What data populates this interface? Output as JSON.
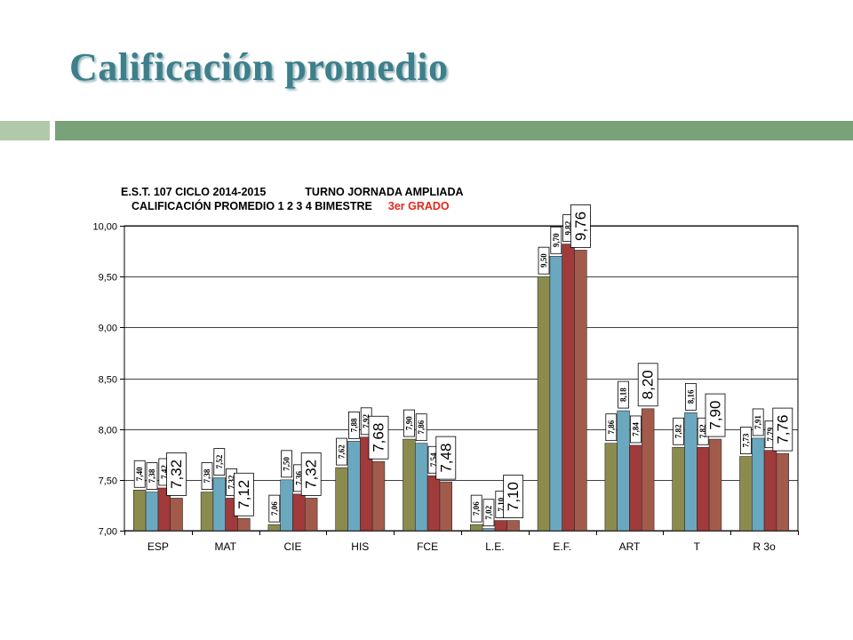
{
  "slide": {
    "title": "Calificación promedio",
    "accent_color": "#3d7f8a",
    "band_colors": [
      "#b2c9a9",
      "#7aa27a"
    ]
  },
  "chart_title": {
    "line1_a": "E.S.T. 107 CICLO 2014-2015",
    "line1_b": "TURNO JORNADA AMPLIADA",
    "line2": "CALIFICACIÓN PROMEDIO 1 2 3 4  BIMESTRE",
    "grade": "3er GRADO"
  },
  "chart_data": {
    "type": "bar",
    "categories": [
      "ESP",
      "MAT",
      "CIE",
      "HIS",
      "FCE",
      "L.E.",
      "E.F.",
      "ART",
      "T",
      "R 3o"
    ],
    "ylim": [
      7.0,
      10.0
    ],
    "yticks": [
      "7,00",
      "7,50",
      "8,00",
      "8,50",
      "9,00",
      "9,50",
      "10,00"
    ],
    "grid": true,
    "series": [
      {
        "color": "#8b8b4e",
        "values": [
          7.4,
          7.38,
          7.06,
          7.62,
          7.9,
          7.06,
          9.5,
          7.86,
          7.82,
          7.73
        ],
        "labels": [
          "7,40",
          "7,38",
          "7,06",
          "7,62",
          "7,90",
          "7,06",
          "9,50",
          "7,86",
          "7,82",
          "7,73"
        ]
      },
      {
        "color": "#6aa8c0",
        "values": [
          7.38,
          7.52,
          7.5,
          7.88,
          7.86,
          7.02,
          9.7,
          8.18,
          8.16,
          7.91
        ],
        "labels": [
          "7,38",
          "7,52",
          "7,50",
          "7,88",
          "7,86",
          "7,02",
          "9,70",
          "8,18",
          "8,16",
          "7,91"
        ]
      },
      {
        "color": "#a13a3a",
        "values": [
          7.42,
          7.32,
          7.36,
          7.92,
          7.54,
          7.1,
          9.82,
          7.84,
          7.82,
          7.79
        ],
        "labels": [
          "7,42",
          "7,32",
          "7,36",
          "7,92",
          "7,54",
          "7,10",
          "9,82",
          "7,84",
          "7,82",
          "7,79"
        ]
      },
      {
        "color": "#a25b4b",
        "values": [
          7.32,
          7.12,
          7.32,
          7.68,
          7.48,
          7.1,
          9.76,
          8.2,
          7.9,
          7.76
        ],
        "labels": [
          "7,32",
          "7,12",
          "7,32",
          "7,68",
          "7,48",
          "7,10",
          "9,76",
          "8,20",
          "7,90",
          "7,76"
        ]
      }
    ]
  }
}
